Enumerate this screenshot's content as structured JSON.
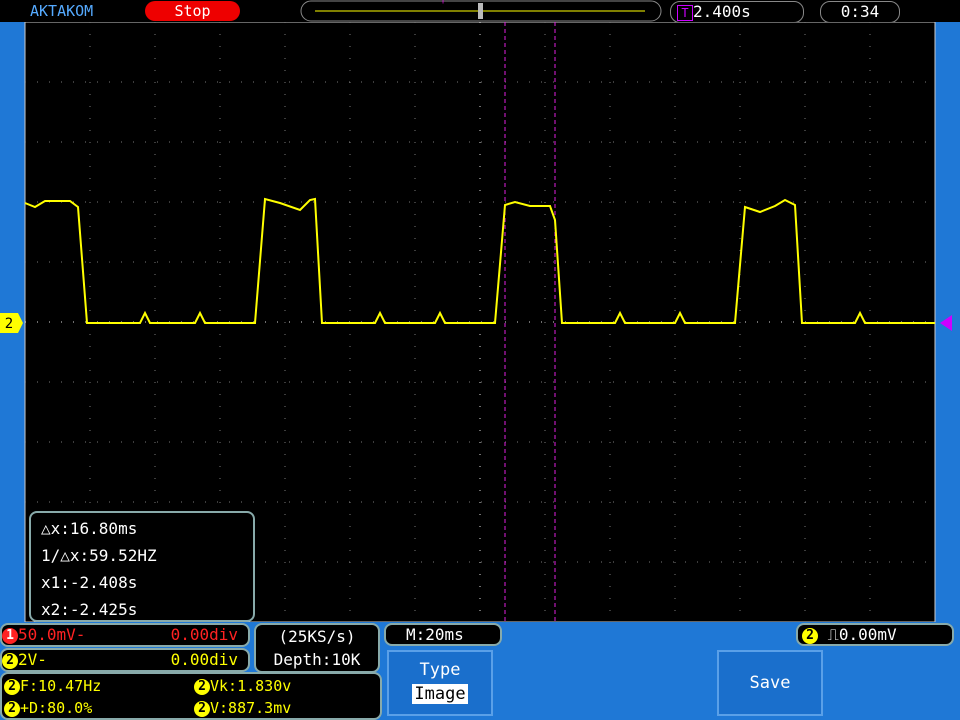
{
  "header": {
    "brand": "AKTAKOM",
    "status": "Stop",
    "trigger_marker": "T",
    "trigger_time": "2.400s",
    "clock": "0:34"
  },
  "screen": {
    "channel_marker": "2"
  },
  "cursors": {
    "dx": "△x:16.80ms",
    "inv_dx": "1/△x:59.52HZ",
    "x1": "x1:-2.408s",
    "x2": "x2:-2.425s"
  },
  "channels": [
    {
      "badge": "1",
      "scale": "50.0mV-",
      "offset": "0.00div"
    },
    {
      "badge": "2",
      "scale": "2V-",
      "offset": "0.00div"
    }
  ],
  "acquisition": {
    "rate": "(25KS/s)",
    "depth": "Depth:10K"
  },
  "timebase": "M:20ms",
  "trigger": {
    "badge": "2",
    "level": "0.00mV"
  },
  "menu": {
    "type_label": "Type",
    "type_value": "Image",
    "save": "Save"
  },
  "measurements": [
    {
      "badge": "2",
      "text": "F:10.47Hz"
    },
    {
      "badge": "2",
      "text": "Vk:1.830v"
    },
    {
      "badge": "2",
      "text": "+D:80.0%"
    },
    {
      "badge": "2",
      "text": "V:887.3mv"
    }
  ]
}
